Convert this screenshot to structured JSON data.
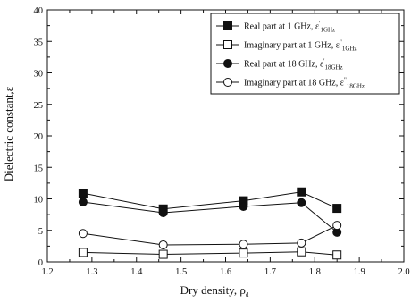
{
  "chart_data": {
    "type": "line",
    "xlabel_main": "Dry density, ρ",
    "xlabel_sub": "d",
    "ylabel": "Dielectric constant,ε",
    "xlim": [
      1.2,
      2.0
    ],
    "ylim": [
      0,
      40
    ],
    "xticks": [
      1.2,
      1.3,
      1.4,
      1.5,
      1.6,
      1.7,
      1.8,
      1.9,
      2.0
    ],
    "xtick_labels": [
      "1.2",
      "1.3",
      "1.4",
      "1.5",
      "1.6",
      "1.7",
      "1.8",
      "1.9",
      "2.0"
    ],
    "yticks": [
      0,
      5,
      10,
      15,
      20,
      25,
      30,
      35,
      40
    ],
    "ytick_labels": [
      "0",
      "5",
      "10",
      "15",
      "20",
      "25",
      "30",
      "35",
      "40"
    ],
    "grid": false,
    "legend_position": "top-right",
    "x": [
      1.28,
      1.46,
      1.64,
      1.77,
      1.85
    ],
    "series": [
      {
        "name": "Real part at 1 GHz, ε'1GHz",
        "label_main": "Real part at 1 GHz, ε",
        "label_sup": "'",
        "label_sub": "1GHz",
        "marker": "filled-square",
        "values": [
          10.9,
          8.4,
          9.7,
          11.1,
          8.5
        ]
      },
      {
        "name": "Imaginary part at 1 GHz, ε\"1GHz",
        "label_main": "Imaginary part at 1 GHz, ε",
        "label_sup": "\"",
        "label_sub": "1GHz",
        "marker": "open-square",
        "values": [
          1.5,
          1.2,
          1.4,
          1.6,
          1.1
        ]
      },
      {
        "name": "Real part at 18 GHz, ε'18GHz",
        "label_main": "Real part at 18 GHz, ε",
        "label_sup": "'",
        "label_sub": "18GHz",
        "marker": "filled-circle",
        "values": [
          9.5,
          7.8,
          8.8,
          9.4,
          4.7
        ]
      },
      {
        "name": "Imaginary part at 18 GHz, ε\"18GHz",
        "label_main": "Imaginary part at 18 GHz, ε",
        "label_sup": "\"",
        "label_sub": "18GHz",
        "marker": "open-circle",
        "values": [
          4.5,
          2.7,
          2.8,
          3.0,
          5.8
        ]
      }
    ]
  }
}
